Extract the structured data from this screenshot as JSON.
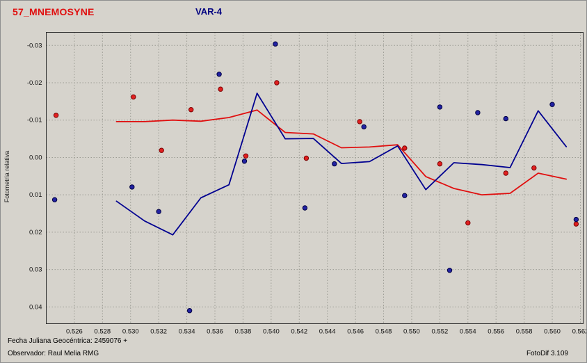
{
  "header": {
    "object_title": "57_MNEMOSYNE",
    "variable_label": "VAR-4"
  },
  "footer": {
    "julian_date": "Fecha Juliana Geocéntrica: 2459076 +",
    "observer": "Observador: Raul Melia RMG",
    "app_version": "FotoDif 3.109"
  },
  "colors": {
    "background": "#d6d3cc",
    "grid": "#9c9c94",
    "plot_border": "#2a2a2a",
    "axis_text": "#111111",
    "red_series": "#e01010",
    "blue_series": "#000090"
  },
  "chart_data": {
    "type": "line",
    "title": "57_MNEMOSYNE",
    "subtitle": "VAR-4",
    "xlabel": "",
    "ylabel": "Fotometria relativa",
    "grid": true,
    "y_axis_inverted": true,
    "xlim": [
      0.524,
      0.5622
    ],
    "ylim": [
      -0.0335,
      0.0445
    ],
    "x_ticks": [
      "0.526",
      "0.528",
      "0.530",
      "0.532",
      "0.534",
      "0.536",
      "0.538",
      "0.540",
      "0.542",
      "0.544",
      "0.546",
      "0.548",
      "0.550",
      "0.552",
      "0.554",
      "0.556",
      "0.558",
      "0.560",
      "0.562"
    ],
    "y_ticks": [
      "-0.03",
      "-0.02",
      "-0.01",
      "0.00",
      "0.01",
      "0.02",
      "0.03",
      "0.04"
    ],
    "series": [
      {
        "name": "comparison-curve-red",
        "kind": "line",
        "color": "#e01010",
        "x": [
          0.529,
          0.531,
          0.533,
          0.535,
          0.537,
          0.539,
          0.541,
          0.543,
          0.545,
          0.547,
          0.549,
          0.551,
          0.553,
          0.555,
          0.557,
          0.559,
          0.561
        ],
        "y": [
          -0.0096,
          -0.0096,
          -0.01,
          -0.0097,
          -0.0107,
          -0.0127,
          -0.0067,
          -0.0063,
          -0.0026,
          -0.0028,
          -0.0034,
          0.0051,
          0.0083,
          0.01,
          0.0096,
          0.0042,
          0.0058
        ]
      },
      {
        "name": "variable-curve-blue",
        "kind": "line",
        "color": "#000090",
        "x": [
          0.529,
          0.531,
          0.533,
          0.535,
          0.537,
          0.539,
          0.541,
          0.543,
          0.545,
          0.547,
          0.549,
          0.551,
          0.553,
          0.555,
          0.557,
          0.559,
          0.561
        ],
        "y": [
          0.0117,
          0.017,
          0.0207,
          0.0108,
          0.0073,
          -0.0172,
          -0.005,
          -0.0051,
          0.0016,
          0.0011,
          -0.0031,
          0.0086,
          0.0014,
          0.0019,
          0.0027,
          -0.0125,
          -0.0029
        ]
      },
      {
        "name": "comparison-points-red",
        "kind": "scatter",
        "fill": "#e02020",
        "edge": "#7a0000",
        "x": [
          0.5247,
          0.5302,
          0.5322,
          0.5343,
          0.5364,
          0.5382,
          0.5404,
          0.5425,
          0.5463,
          0.5495,
          0.552,
          0.554,
          0.5567,
          0.5587,
          0.5617
        ],
        "y": [
          -0.0113,
          -0.0162,
          -0.0019,
          -0.0128,
          -0.0183,
          -0.0004,
          -0.02,
          0.0002,
          -0.0096,
          -0.0025,
          0.0017,
          0.0175,
          0.0042,
          0.0028,
          0.0178
        ]
      },
      {
        "name": "variable-points-blue",
        "kind": "scatter",
        "fill": "#2222a2",
        "edge": "#000040",
        "x": [
          0.5246,
          0.5301,
          0.532,
          0.5342,
          0.5363,
          0.5381,
          0.5403,
          0.5424,
          0.5445,
          0.5466,
          0.5495,
          0.552,
          0.5527,
          0.5547,
          0.5567,
          0.56,
          0.5617
        ],
        "y": [
          0.0113,
          0.0079,
          0.0145,
          0.041,
          -0.0223,
          0.001,
          -0.0304,
          0.0135,
          0.0017,
          -0.0082,
          0.0102,
          -0.0135,
          0.0302,
          -0.012,
          -0.0104,
          -0.0142,
          0.0166
        ]
      }
    ]
  }
}
